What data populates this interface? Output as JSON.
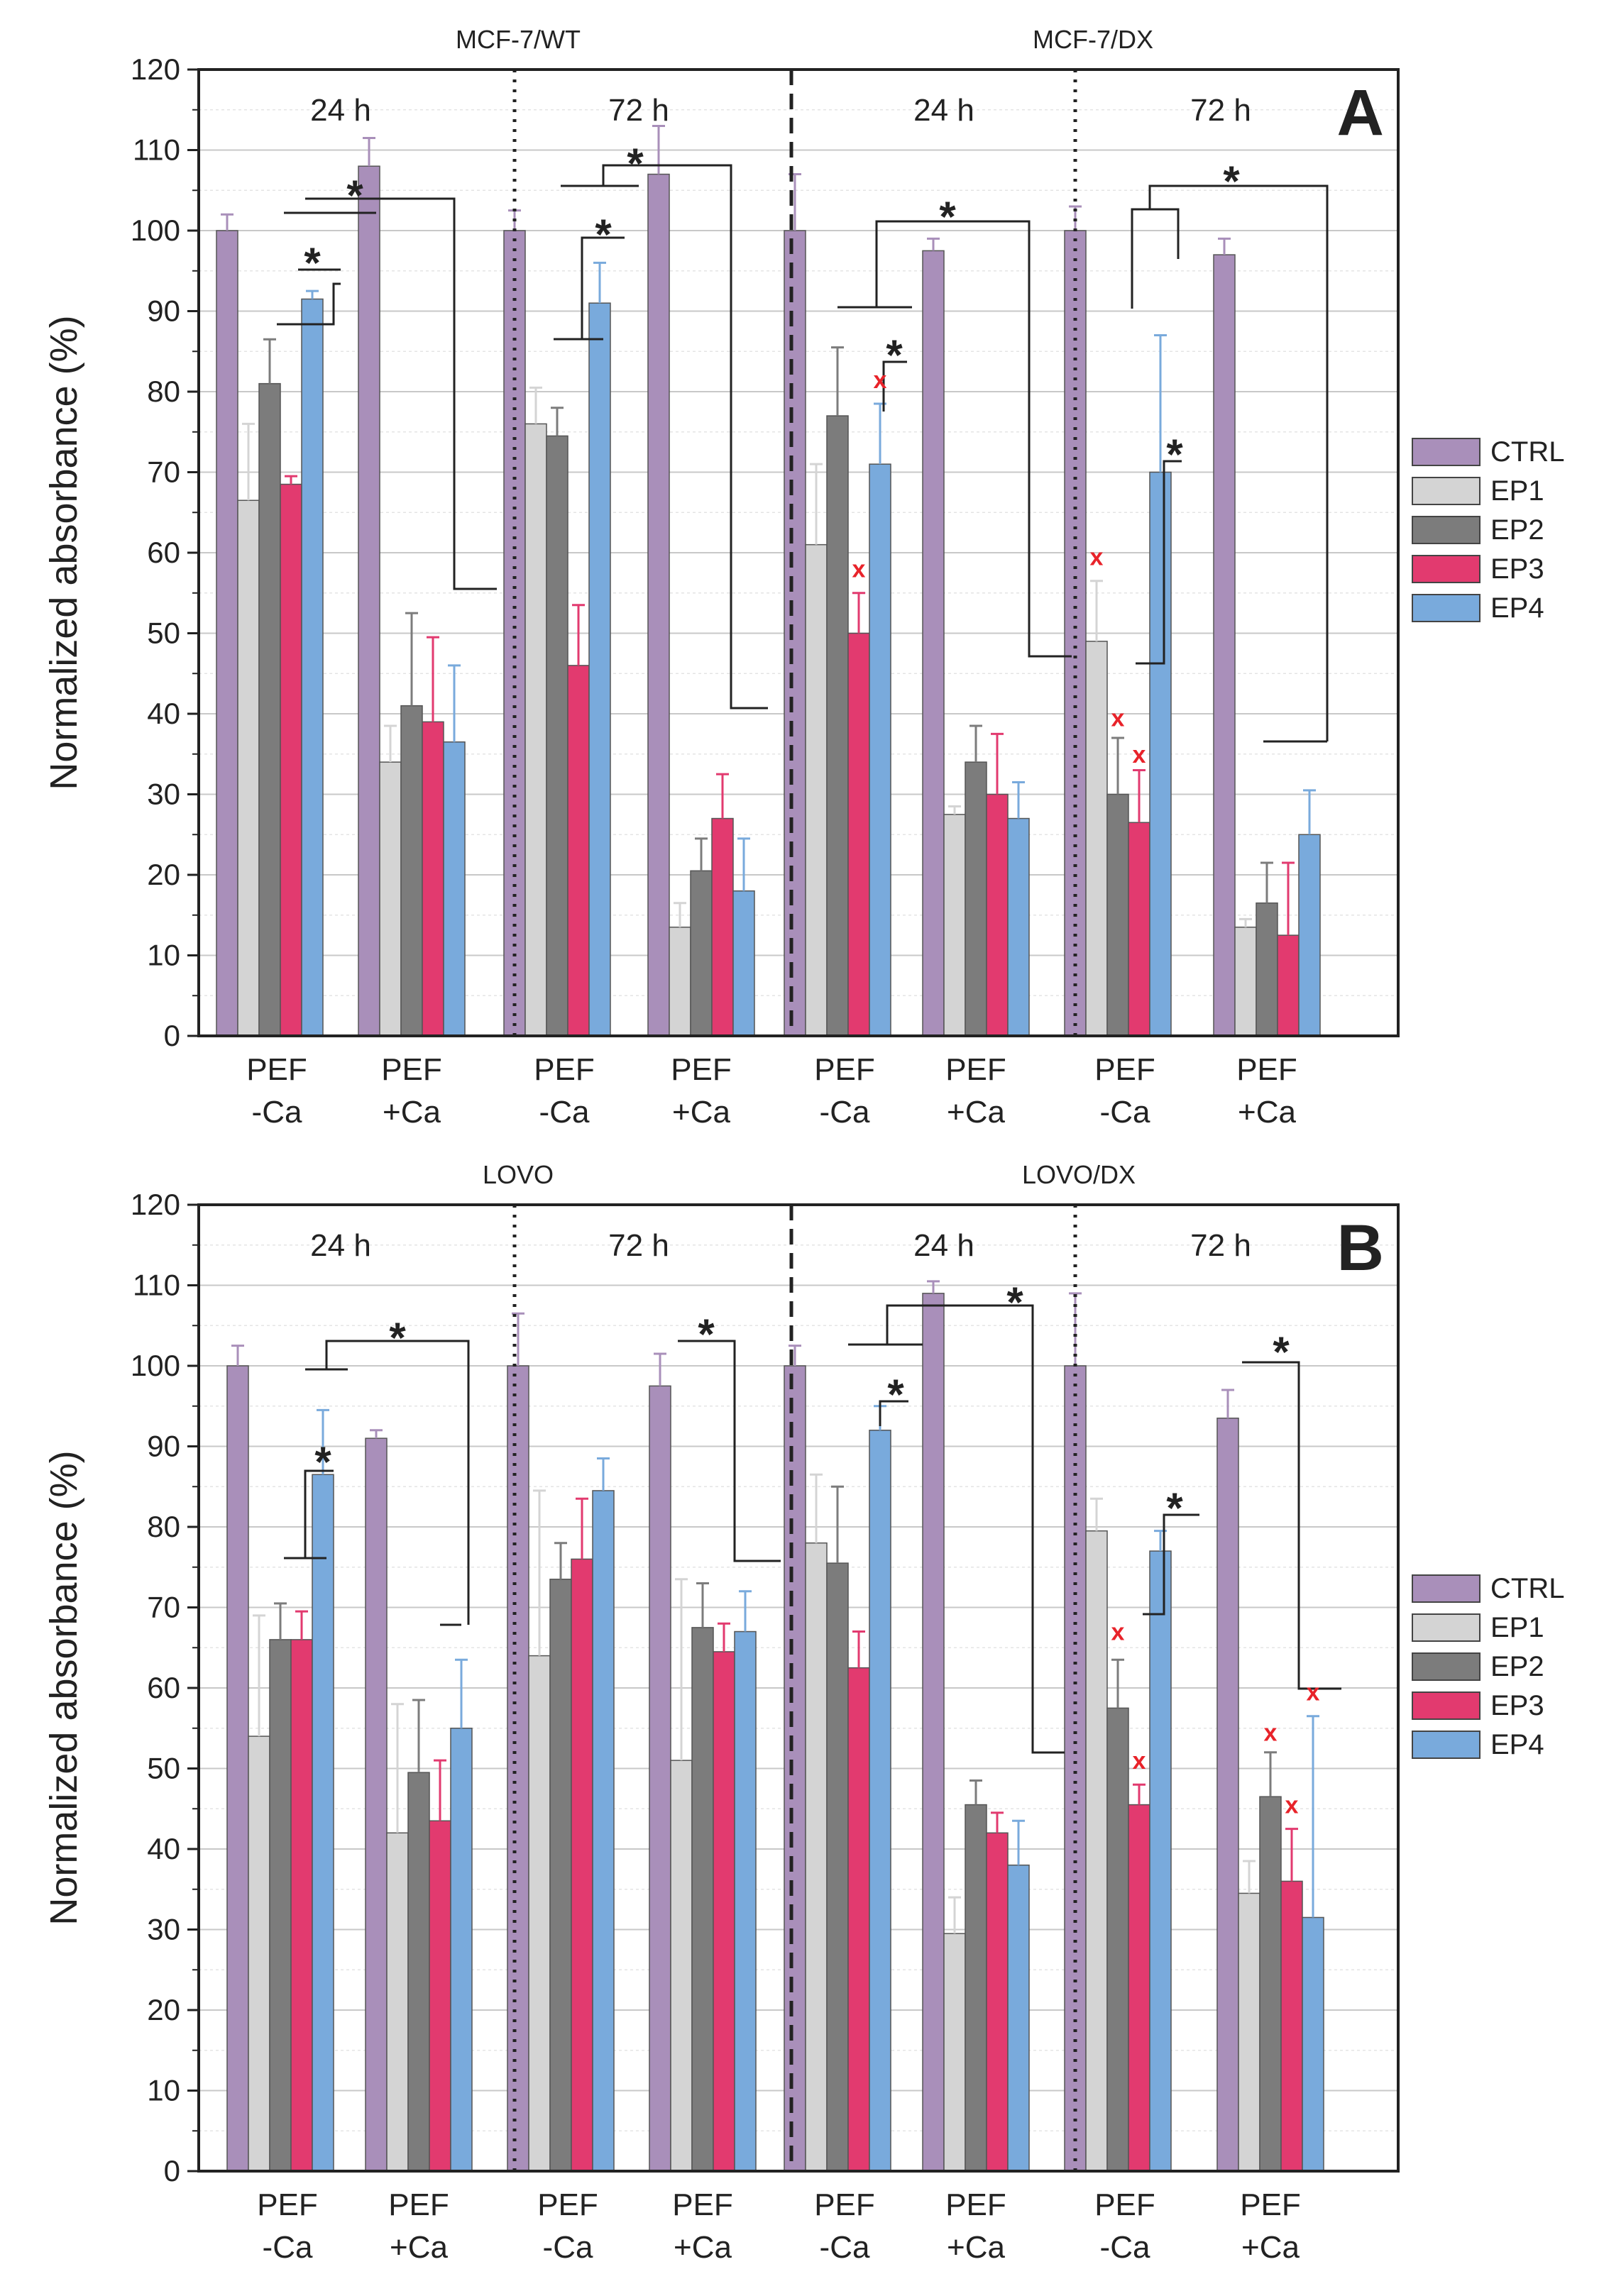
{
  "figure": {
    "y_axis_label": "Normalized absorbance (%)",
    "legend_entries": [
      "CTRL",
      "EP1",
      "EP2",
      "EP3",
      "EP4"
    ],
    "colors": {
      "CTRL": "#a98fba",
      "EP1": "#d4d4d4",
      "EP2": "#7c7c7c",
      "EP3": "#e23a6f",
      "EP4": "#79aadc",
      "x_marker": "#e8232a"
    },
    "significance_symbol": "*",
    "x_marker_symbol": "x"
  },
  "chart_data": [
    {
      "type": "bar",
      "panel_label": "A",
      "ylim": [
        0,
        120
      ],
      "ylabel": "Normalized absorbance (%)",
      "yticks": [
        0,
        10,
        20,
        30,
        40,
        50,
        60,
        70,
        80,
        90,
        100,
        110,
        120
      ],
      "grid": true,
      "legend_position": "right",
      "cell_lines": [
        "MCF-7/WT",
        "MCF-7/DX"
      ],
      "time_labels": [
        "24 h",
        "72 h",
        "24 h",
        "72 h"
      ],
      "categories": [
        [
          "PEF",
          "-Ca"
        ],
        [
          "PEF",
          "+Ca"
        ],
        [
          "PEF",
          "-Ca"
        ],
        [
          "PEF",
          "+Ca"
        ],
        [
          "PEF",
          "-Ca"
        ],
        [
          "PEF",
          "+Ca"
        ],
        [
          "PEF",
          "-Ca"
        ],
        [
          "PEF",
          "+Ca"
        ]
      ],
      "series": [
        {
          "name": "CTRL",
          "values": [
            100,
            108,
            100,
            107,
            100,
            97.5,
            100,
            97
          ],
          "errors": [
            2,
            3.5,
            2.5,
            6,
            7,
            1.5,
            3,
            2
          ]
        },
        {
          "name": "EP1",
          "values": [
            66.5,
            34,
            76,
            13.5,
            61,
            27.5,
            49,
            13.5
          ],
          "errors": [
            9.5,
            4.5,
            4.5,
            3,
            10,
            1,
            7.5,
            1
          ]
        },
        {
          "name": "EP2",
          "values": [
            81,
            41,
            74.5,
            20.5,
            77,
            34,
            30,
            16.5
          ],
          "errors": [
            5.5,
            11.5,
            3.5,
            4,
            8.5,
            4.5,
            7,
            5
          ]
        },
        {
          "name": "EP3",
          "values": [
            68.5,
            39,
            46,
            27,
            50,
            30,
            26.5,
            12.5
          ],
          "errors": [
            1,
            10.5,
            7.5,
            5.5,
            5,
            7.5,
            6.5,
            9
          ]
        },
        {
          "name": "EP4",
          "values": [
            91.5,
            36.5,
            91,
            18,
            71,
            27,
            70,
            25
          ],
          "errors": [
            1,
            9.5,
            5,
            6.5,
            7.5,
            4.5,
            17,
            5.5
          ]
        }
      ],
      "x_markers": [
        {
          "group": 4,
          "bar": 3,
          "y": 58
        },
        {
          "group": 4,
          "bar": 4,
          "y": 81.5
        },
        {
          "group": 6,
          "bar": 1,
          "y": 59.5
        },
        {
          "group": 6,
          "bar": 2,
          "y": 39.5
        },
        {
          "group": 6,
          "bar": 3,
          "y": 35
        }
      ]
    },
    {
      "type": "bar",
      "panel_label": "B",
      "ylim": [
        0,
        120
      ],
      "ylabel": "Normalized absorbance (%)",
      "yticks": [
        0,
        10,
        20,
        30,
        40,
        50,
        60,
        70,
        80,
        90,
        100,
        110,
        120
      ],
      "grid": true,
      "legend_position": "right",
      "cell_lines": [
        "LOVO",
        "LOVO/DX"
      ],
      "time_labels": [
        "24 h",
        "72 h",
        "24 h",
        "72 h"
      ],
      "categories": [
        [
          "PEF",
          "-Ca"
        ],
        [
          "PEF",
          "+Ca"
        ],
        [
          "PEF",
          "-Ca"
        ],
        [
          "PEF",
          "+Ca"
        ],
        [
          "PEF",
          "-Ca"
        ],
        [
          "PEF",
          "+Ca"
        ],
        [
          "PEF",
          "-Ca"
        ],
        [
          "PEF",
          "+Ca"
        ]
      ],
      "series": [
        {
          "name": "CTRL",
          "values": [
            100,
            91,
            100,
            97.5,
            100,
            109,
            100,
            93.5
          ],
          "errors": [
            2.5,
            1,
            6.5,
            4,
            2.5,
            1.5,
            9,
            3.5
          ]
        },
        {
          "name": "EP1",
          "values": [
            54,
            42,
            64,
            51,
            78,
            29.5,
            79.5,
            34.5
          ],
          "errors": [
            15,
            16,
            20.5,
            22.5,
            8.5,
            4.5,
            4,
            4
          ]
        },
        {
          "name": "EP2",
          "values": [
            66,
            49.5,
            73.5,
            67.5,
            75.5,
            45.5,
            57.5,
            46.5
          ],
          "errors": [
            4.5,
            9,
            4.5,
            5.5,
            9.5,
            3,
            6,
            5.5
          ]
        },
        {
          "name": "EP3",
          "values": [
            66,
            43.5,
            76,
            64.5,
            62.5,
            42,
            45.5,
            36
          ],
          "errors": [
            3.5,
            7.5,
            7.5,
            3.5,
            4.5,
            2.5,
            2.5,
            6.5
          ]
        },
        {
          "name": "EP4",
          "values": [
            86.5,
            55,
            84.5,
            67,
            92,
            38,
            77,
            31.5
          ],
          "errors": [
            8,
            8.5,
            4,
            5,
            3,
            5.5,
            2.5,
            25
          ]
        }
      ],
      "x_markers": [
        {
          "group": 6,
          "bar": 2,
          "y": 67
        },
        {
          "group": 6,
          "bar": 3,
          "y": 51
        },
        {
          "group": 7,
          "bar": 2,
          "y": 54.5
        },
        {
          "group": 7,
          "bar": 3,
          "y": 45.5
        },
        {
          "group": 7,
          "bar": 4,
          "y": 59.5
        }
      ]
    }
  ]
}
